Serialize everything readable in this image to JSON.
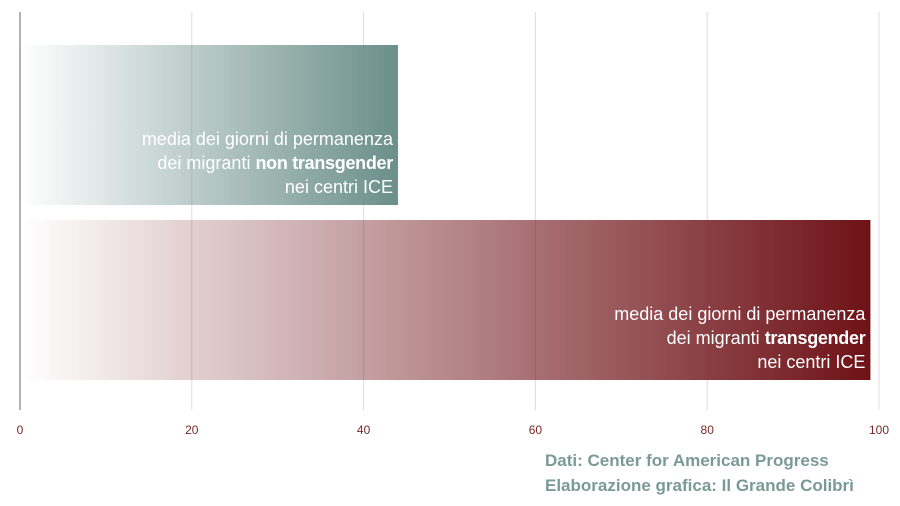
{
  "chart_data": {
    "type": "bar",
    "orientation": "horizontal",
    "x_ticks": [
      0,
      20,
      40,
      60,
      80,
      100
    ],
    "xlim": [
      0,
      100
    ],
    "grid": true,
    "bars": [
      {
        "value": 44,
        "color": "#6b8f8a",
        "label": {
          "line1": "media dei giorni di permanenza",
          "line2_pre": "dei migranti ",
          "line2_bold": "non transgender",
          "line3": "nei centri ICE"
        }
      },
      {
        "value": 99,
        "color": "#6e1217",
        "label": {
          "line1": "media dei giorni di permanenza",
          "line2_pre": "dei migranti ",
          "line2_bold": "transgender",
          "line3": "nei centri ICE"
        }
      }
    ]
  },
  "source": {
    "line1": "Dati: Center for American Progress",
    "line2": "Elaborazione grafica: Il Grande Colibrì"
  },
  "colors": {
    "tick_label": "#7a2a2a",
    "grid": "#dddddd",
    "axis": "#666666",
    "source_text": "#7a9a97"
  }
}
